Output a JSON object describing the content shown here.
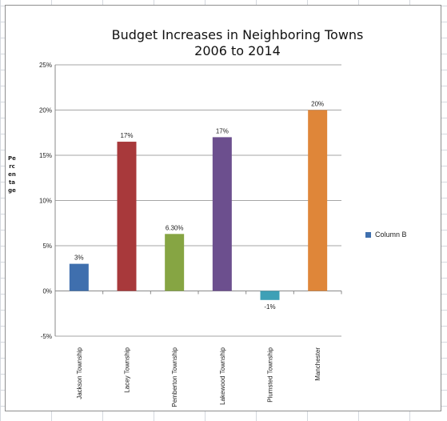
{
  "chart_data": {
    "type": "bar",
    "title_lines": [
      "Budget Increases in Neighboring Towns",
      "2006 to 2014"
    ],
    "ylabel": "Percentage",
    "xlabel": "",
    "categories": [
      "Jackson Township",
      "Lacey Township",
      "Pemberton Township",
      "Lakewood Township",
      "Plumsted Township",
      "Manchester"
    ],
    "series": [
      {
        "name": "Column B",
        "values": [
          3,
          16.5,
          6.3,
          17,
          -1,
          20
        ],
        "data_labels": [
          "3%",
          "17%",
          "6.30%",
          "17%",
          "-1%",
          "20%"
        ]
      }
    ],
    "colors": [
      "#3f6fae",
      "#a8393b",
      "#86a543",
      "#6c4f8e",
      "#3ea0b6",
      "#df8639"
    ],
    "legend_color": "#3f6fae",
    "ylim": [
      -5,
      25
    ],
    "yticks": [
      25,
      20,
      15,
      10,
      5,
      0,
      -5
    ],
    "ytick_labels": [
      "25%",
      "20%",
      "15%",
      "10%",
      "5%",
      "0%",
      "-5%"
    ],
    "grid": true,
    "legend_position": "right"
  }
}
